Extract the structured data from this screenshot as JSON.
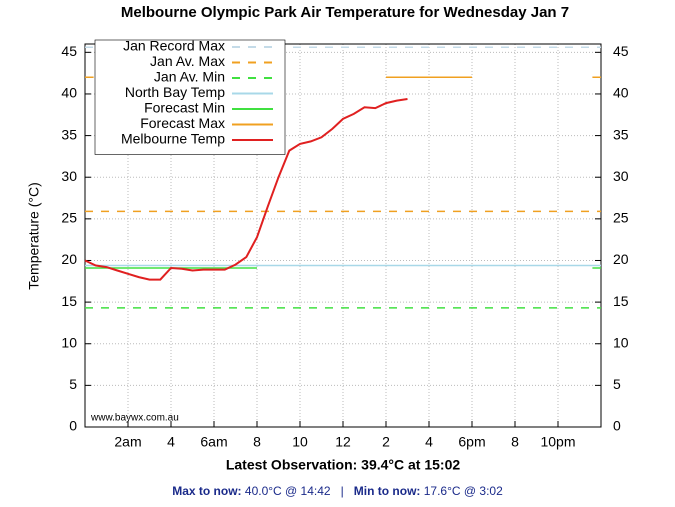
{
  "chart_data": {
    "type": "line",
    "title": "Melbourne Olympic Park Air Temperature  for Wednesday Jan 7",
    "y_label": "Temperature (°C)",
    "x_label": "Latest Observation: 39.4°C at 15:02",
    "watermark": "www.baywx.com.au",
    "xlim": [
      0,
      24
    ],
    "ylim": [
      0,
      46
    ],
    "xticks": [
      {
        "value": 2,
        "label": "2am"
      },
      4,
      {
        "value": 6,
        "label": "6am"
      },
      8,
      10,
      12,
      {
        "value": 14,
        "label": "2"
      },
      {
        "value": 16,
        "label": "4"
      },
      {
        "value": 18,
        "label": "6pm"
      },
      {
        "value": 20,
        "label": "8"
      },
      {
        "value": 22,
        "label": "10pm"
      }
    ],
    "yticks": [
      0,
      5,
      10,
      15,
      20,
      25,
      30,
      35,
      40,
      45
    ],
    "y2lim": [
      0,
      46
    ],
    "y2ticks": [
      0,
      5,
      10,
      15,
      20,
      25,
      30,
      35,
      40,
      45
    ],
    "grid": true,
    "legend": "top-left",
    "series": [
      {
        "name": "Jan Record Max",
        "color": "#c4dbe8",
        "style": "dashed",
        "x": [
          0,
          24
        ],
        "values": [
          45.6,
          45.6
        ]
      },
      {
        "name": "Jan Av. Max",
        "color": "#f0a020",
        "style": "dashed",
        "x": [
          0,
          24
        ],
        "values": [
          25.9,
          25.9
        ]
      },
      {
        "name": "Jan Av. Min",
        "color": "#40e040",
        "style": "dashed",
        "x": [
          0,
          24
        ],
        "values": [
          14.3,
          14.3
        ]
      },
      {
        "name": "North Bay Temp",
        "color": "#a8d8e8",
        "style": "solid",
        "x": [
          0,
          24
        ],
        "values": [
          19.4,
          19.4
        ]
      },
      {
        "name": "Forecast Min",
        "color": "#40e040",
        "style": "solid",
        "x": [
          0,
          8,
          16,
          23.6,
          24
        ],
        "values": [
          19.1,
          19.1,
          null,
          19.1,
          19.1
        ]
      },
      {
        "name": "Forecast Max",
        "color": "#f0a020",
        "style": "solid",
        "x": [
          0,
          0.4,
          8,
          14,
          18,
          20,
          23.6,
          24
        ],
        "values": [
          42,
          42,
          null,
          42,
          42,
          null,
          42,
          42
        ]
      },
      {
        "name": "Melbourne Temp",
        "color": "#e02020",
        "style": "solid",
        "x": [
          0,
          0.5,
          1,
          1.5,
          2,
          2.5,
          3,
          3.5,
          4,
          4.5,
          5,
          5.5,
          6,
          6.5,
          7,
          7.5,
          8,
          8.5,
          9,
          9.5,
          10,
          10.5,
          11,
          11.5,
          12,
          12.5,
          13,
          13.5,
          14,
          14.5,
          15
        ],
        "values": [
          20.0,
          19.4,
          19.2,
          18.8,
          18.4,
          18.0,
          17.7,
          17.7,
          19.1,
          19.0,
          18.8,
          18.9,
          18.9,
          18.9,
          19.5,
          20.4,
          22.8,
          26.5,
          30.0,
          33.2,
          34.0,
          34.3,
          34.8,
          35.8,
          37.0,
          37.6,
          38.4,
          38.3,
          38.9,
          39.2,
          39.4
        ]
      }
    ]
  },
  "footer": {
    "max_label": "Max to now:",
    "max_value": "40.0°C @ 14:42",
    "separator": "|",
    "min_label": "Min to now:",
    "min_value": "17.6°C @ 3:02"
  }
}
